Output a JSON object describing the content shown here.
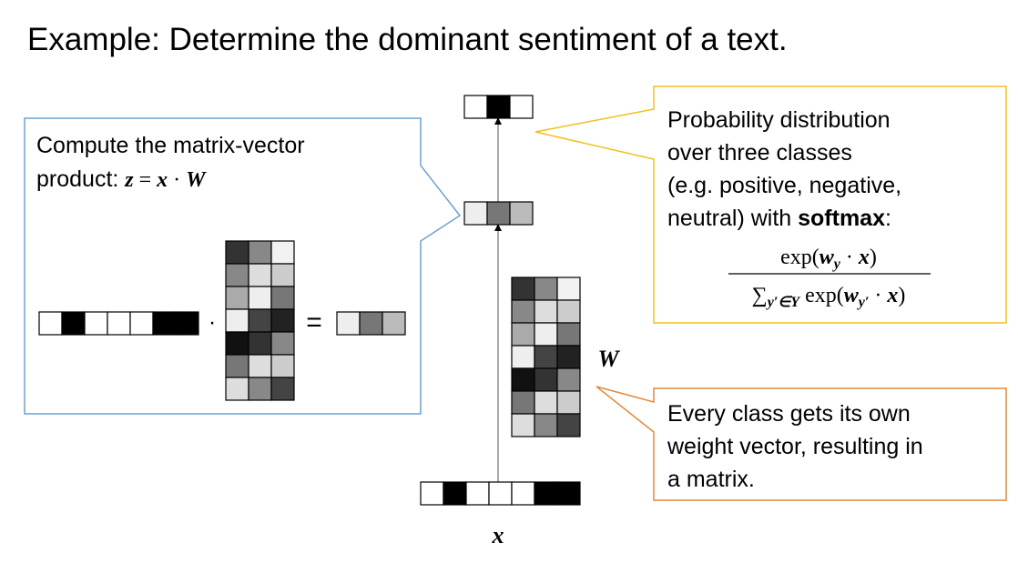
{
  "title": "Example: Determine the dominant sentiment of a text.",
  "left_callout": {
    "lines": [
      "Compute the matrix-vector",
      "product: "
    ],
    "formula": [
      "z",
      " = ",
      "x",
      " · ",
      "W"
    ]
  },
  "operators": {
    "dot": "·",
    "equals": "="
  },
  "labels": {
    "W": "W",
    "x": "x"
  },
  "right_callout": {
    "lines": [
      "Probability distribution",
      "over three classes",
      "(e.g. positive, negative,",
      "neutral) with "
    ],
    "bold": "softmax",
    "colon": ":",
    "numerator": [
      "exp(",
      "w",
      "y",
      " · ",
      "x",
      ")"
    ],
    "denominator": [
      "∑",
      "y′∈Y",
      " exp(",
      "w",
      "y′",
      " · ",
      "x",
      ")"
    ]
  },
  "bottom_callout": {
    "lines": [
      "Every class gets its own",
      "weight vector, resulting in",
      "a matrix."
    ]
  }
}
